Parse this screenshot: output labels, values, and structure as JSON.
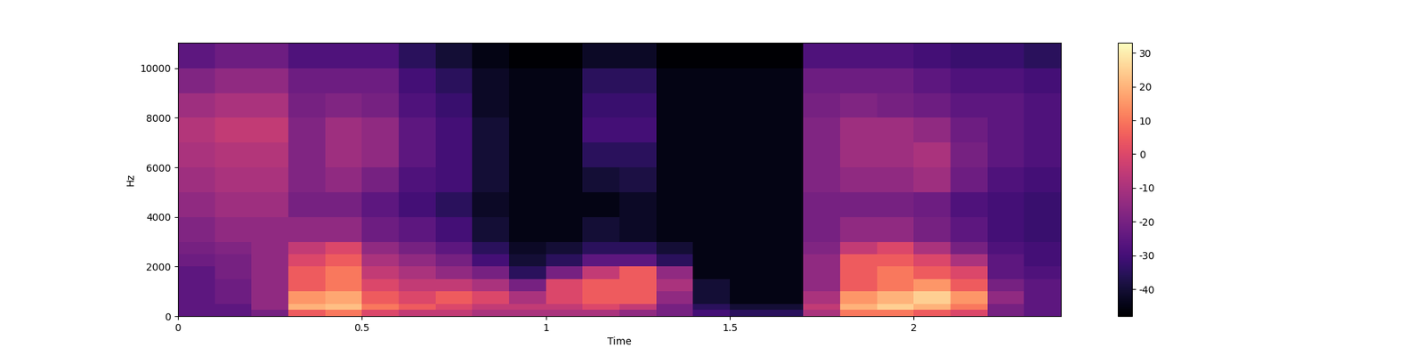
{
  "chart_data": {
    "type": "heatmap",
    "xlabel": "Time",
    "ylabel": "Hz",
    "x_edges": [
      0,
      0.1,
      0.2,
      0.3,
      0.4,
      0.5,
      0.6,
      0.7,
      0.8,
      0.9,
      1.0,
      1.1,
      1.2,
      1.3,
      1.4,
      1.5,
      1.6,
      1.7,
      1.8,
      1.9,
      2.0,
      2.1,
      2.2,
      2.3,
      2.4
    ],
    "y_edges": [
      0,
      250,
      500,
      1000,
      1500,
      2000,
      2500,
      3000,
      4000,
      5000,
      6000,
      7000,
      8000,
      9000,
      10000,
      11025
    ],
    "cells": [
      [
        -25,
        -25,
        -20,
        5,
        10,
        0,
        -5,
        -5,
        -10,
        -10,
        -10,
        -10,
        -15,
        -20,
        -30,
        -35,
        -35,
        -10,
        10,
        10,
        5,
        0,
        -20,
        -25
      ],
      [
        -25,
        -25,
        -15,
        20,
        22,
        10,
        5,
        0,
        -5,
        -5,
        -5,
        0,
        -5,
        -20,
        -35,
        -40,
        -40,
        -5,
        20,
        25,
        20,
        10,
        -20,
        -25
      ],
      [
        -25,
        -22,
        -15,
        15,
        18,
        5,
        0,
        5,
        0,
        -10,
        0,
        5,
        5,
        -15,
        -40,
        -45,
        -45,
        -10,
        15,
        20,
        25,
        15,
        -15,
        -25
      ],
      [
        -25,
        -22,
        -15,
        5,
        10,
        0,
        -5,
        -5,
        -10,
        -20,
        0,
        5,
        5,
        -10,
        -40,
        -45,
        -45,
        -15,
        5,
        10,
        15,
        5,
        -20,
        -25
      ],
      [
        -25,
        -20,
        -15,
        5,
        10,
        -5,
        -10,
        -15,
        -20,
        -35,
        -20,
        -5,
        5,
        -15,
        -45,
        -45,
        -45,
        -15,
        5,
        10,
        5,
        0,
        -25,
        -28
      ],
      [
        -22,
        -20,
        -15,
        0,
        5,
        -10,
        -15,
        -20,
        -30,
        -40,
        -35,
        -25,
        -25,
        -35,
        -45,
        -45,
        -45,
        -15,
        5,
        5,
        0,
        -10,
        -25,
        -30
      ],
      [
        -20,
        -18,
        -15,
        -5,
        0,
        -15,
        -20,
        -25,
        -35,
        -42,
        -40,
        -35,
        -35,
        -40,
        -45,
        -45,
        -45,
        -18,
        -5,
        0,
        -10,
        -20,
        -28,
        -30
      ],
      [
        -18,
        -15,
        -15,
        -15,
        -15,
        -22,
        -25,
        -30,
        -40,
        -45,
        -45,
        -40,
        -42,
        -45,
        -45,
        -45,
        -45,
        -20,
        -15,
        -15,
        -20,
        -25,
        -30,
        -32
      ],
      [
        -15,
        -12,
        -12,
        -20,
        -20,
        -25,
        -30,
        -35,
        -42,
        -45,
        -45,
        -45,
        -42,
        -45,
        -45,
        -45,
        -45,
        -20,
        -20,
        -20,
        -22,
        -28,
        -30,
        -32
      ],
      [
        -12,
        -10,
        -10,
        -18,
        -15,
        -20,
        -28,
        -30,
        -40,
        -45,
        -45,
        -40,
        -38,
        -45,
        -45,
        -45,
        -45,
        -18,
        -15,
        -15,
        -12,
        -22,
        -28,
        -30
      ],
      [
        -10,
        -8,
        -8,
        -18,
        -12,
        -15,
        -25,
        -30,
        -40,
        -45,
        -45,
        -35,
        -35,
        -45,
        -45,
        -45,
        -45,
        -18,
        -12,
        -12,
        -10,
        -20,
        -25,
        -28
      ],
      [
        -8,
        -5,
        -5,
        -18,
        -12,
        -15,
        -25,
        -30,
        -40,
        -45,
        -45,
        -30,
        -30,
        -45,
        -45,
        -45,
        -45,
        -18,
        -12,
        -12,
        -15,
        -22,
        -25,
        -28
      ],
      [
        -12,
        -10,
        -10,
        -20,
        -18,
        -20,
        -28,
        -32,
        -42,
        -45,
        -45,
        -32,
        -32,
        -45,
        -45,
        -45,
        -45,
        -20,
        -18,
        -20,
        -22,
        -25,
        -25,
        -28
      ],
      [
        -18,
        -15,
        -15,
        -22,
        -22,
        -22,
        -30,
        -35,
        -42,
        -45,
        -45,
        -35,
        -35,
        -45,
        -45,
        -45,
        -45,
        -22,
        -22,
        -22,
        -25,
        -28,
        -28,
        -30
      ],
      [
        -25,
        -22,
        -22,
        -28,
        -28,
        -28,
        -35,
        -40,
        -45,
        -48,
        -48,
        -42,
        -42,
        -48,
        -48,
        -48,
        -48,
        -28,
        -28,
        -28,
        -30,
        -32,
        -32,
        -35
      ]
    ],
    "xlim": [
      0,
      2.4
    ],
    "ylim": [
      0,
      11025
    ],
    "xticks": [
      0,
      0.5,
      1,
      1.5,
      2
    ],
    "yticks": [
      0,
      2000,
      4000,
      6000,
      8000,
      10000
    ],
    "colorbar_range": [
      -48,
      33
    ],
    "colorbar_ticks": [
      -40,
      -30,
      -20,
      -10,
      0,
      10,
      20,
      30
    ]
  }
}
